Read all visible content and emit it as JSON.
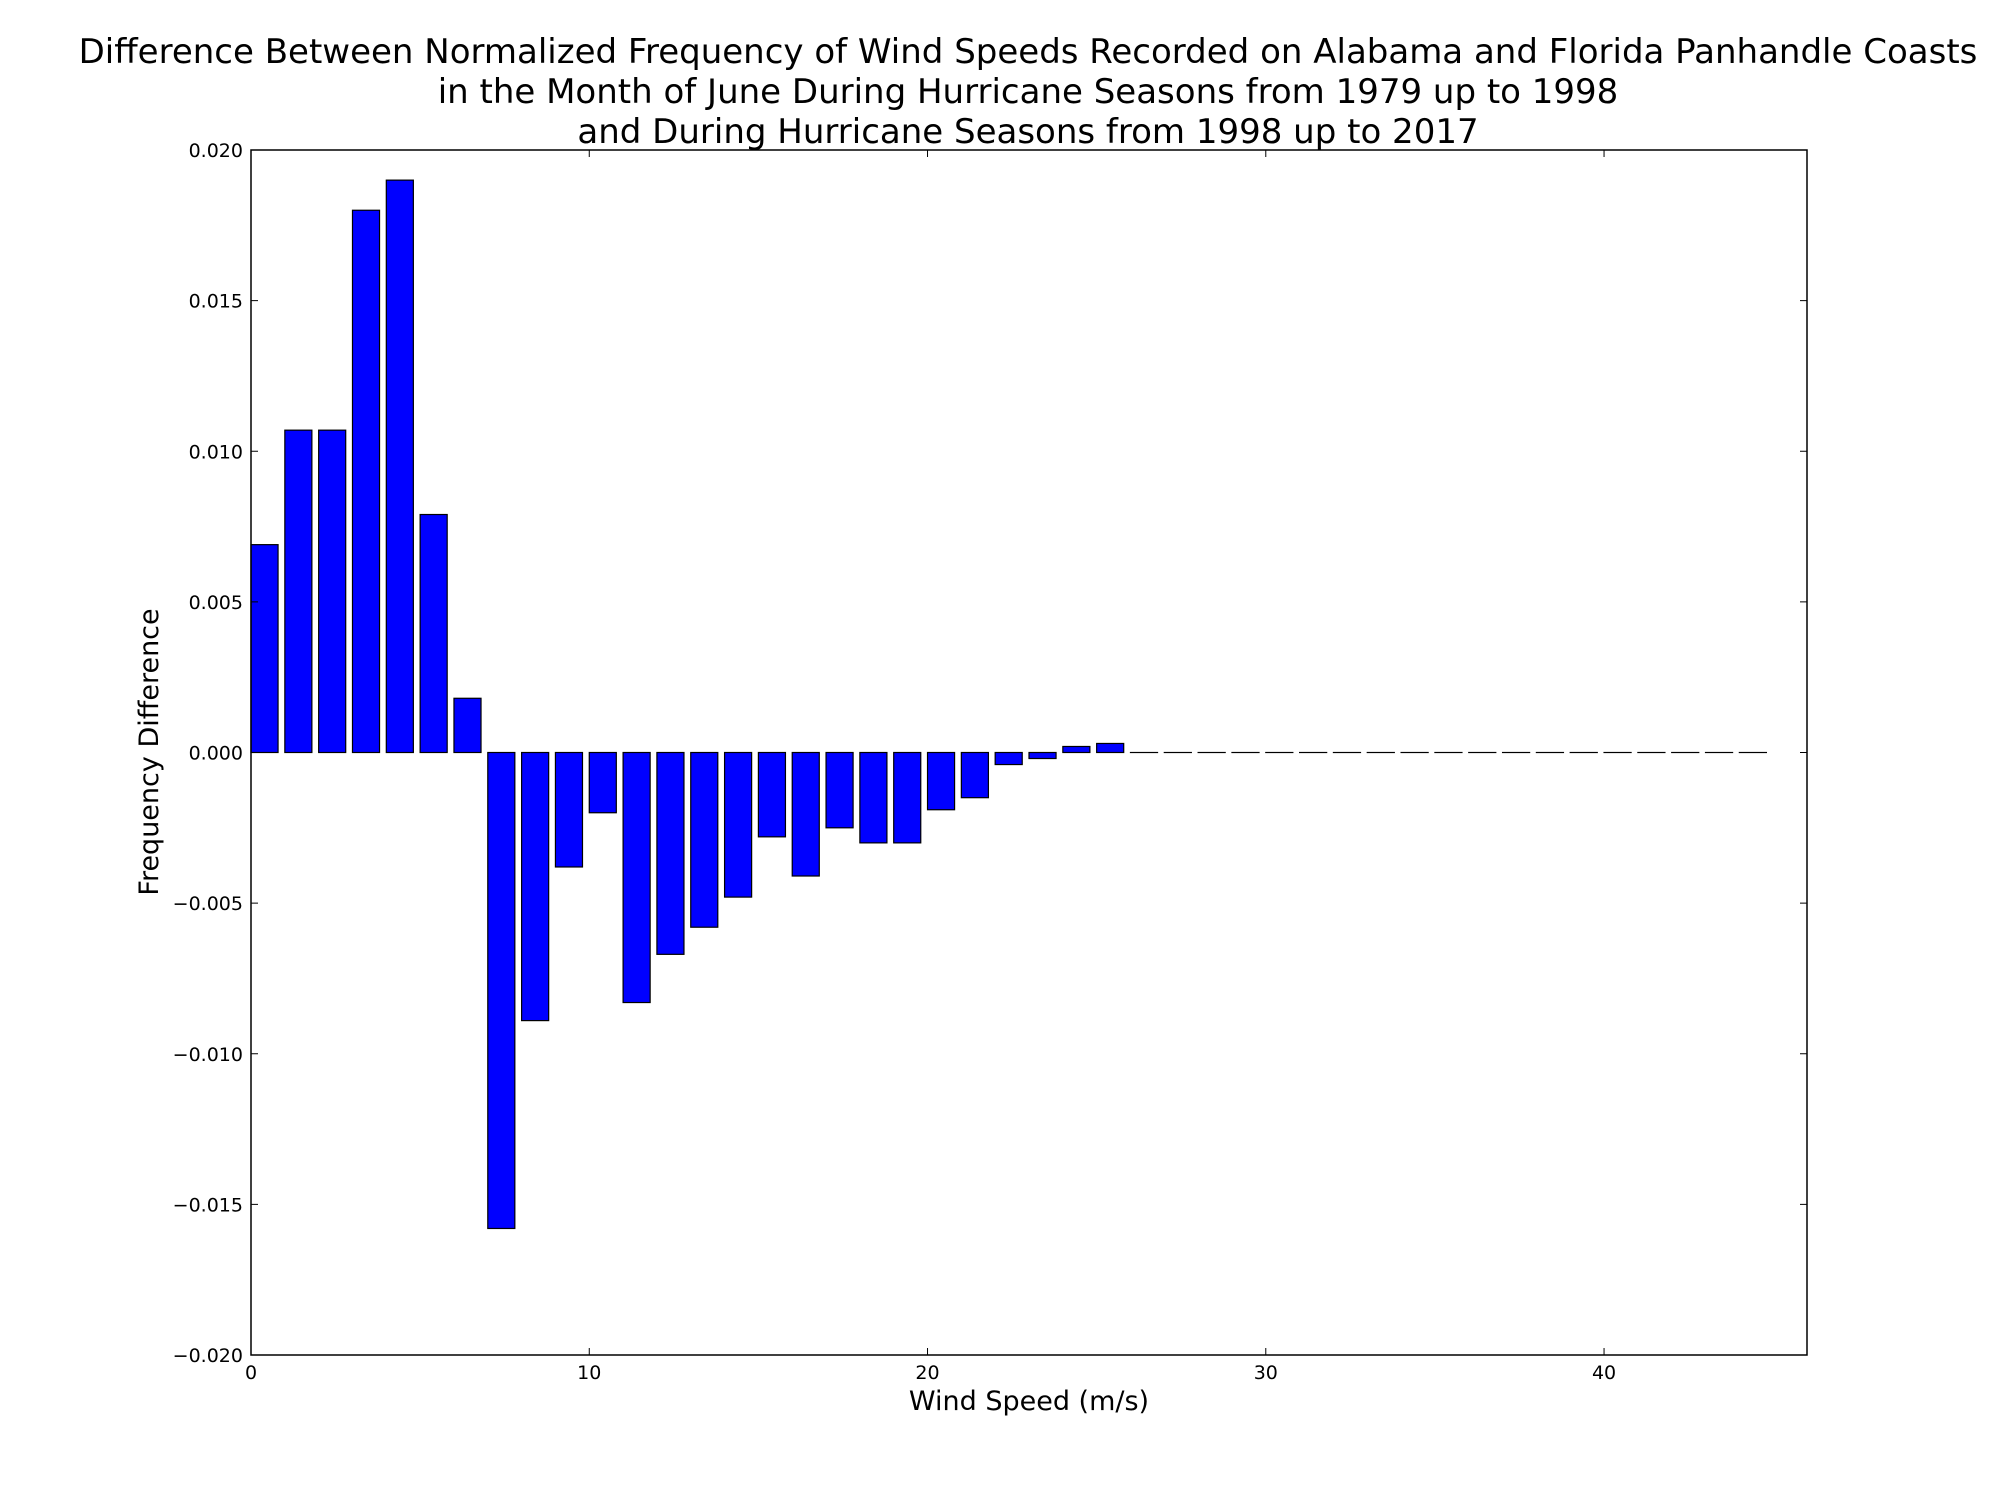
{
  "chart_data": {
    "type": "bar",
    "title_lines": [
      "Difference Between Normalized Frequency of Wind Speeds Recorded on Alabama and Florida Panhandle Coasts",
      "in the Month of June During Hurricane Seasons from 1979 up to 1998",
      "and During Hurricane Seasons from 1998 up to 2017"
    ],
    "xlabel": "Wind Speed (m/s)",
    "ylabel": "Frequency Difference",
    "xlim": [
      0,
      46
    ],
    "ylim": [
      -0.02,
      0.02
    ],
    "x_ticks": [
      0,
      10,
      20,
      30,
      40
    ],
    "x_tick_labels": [
      "0",
      "10",
      "20",
      "30",
      "40"
    ],
    "y_ticks": [
      0.02,
      0.015,
      0.01,
      0.005,
      0.0,
      -0.005,
      -0.01,
      -0.015,
      -0.02
    ],
    "y_tick_labels": [
      "0.020",
      "0.015",
      "0.010",
      "0.005",
      "0.000",
      "−0.005",
      "−0.010",
      "−0.015",
      "−0.020"
    ],
    "bar_width": 0.8,
    "bar_color": "#0000ff",
    "edge_color": "#000000",
    "grid": false,
    "x": [
      0,
      1,
      2,
      3,
      4,
      5,
      6,
      7,
      8,
      9,
      10,
      11,
      12,
      13,
      14,
      15,
      16,
      17,
      18,
      19,
      20,
      21,
      22,
      23,
      24,
      25,
      26,
      27,
      28,
      29,
      30,
      31,
      32,
      33,
      34,
      35,
      36,
      37,
      38,
      39,
      40,
      41,
      42,
      43,
      44
    ],
    "values": [
      0.0069,
      0.0107,
      0.0107,
      0.018,
      0.019,
      0.0079,
      0.0018,
      -0.0158,
      -0.0089,
      -0.0038,
      -0.002,
      -0.0083,
      -0.0067,
      -0.0058,
      -0.0048,
      -0.0028,
      -0.0041,
      -0.0025,
      -0.003,
      -0.003,
      -0.0019,
      -0.0015,
      -0.0004,
      -0.0002,
      0.0002,
      0.0003,
      0,
      0,
      0,
      0,
      0,
      0,
      0,
      0,
      0,
      0,
      0,
      0,
      0,
      0,
      0,
      0,
      0,
      0,
      0
    ]
  }
}
